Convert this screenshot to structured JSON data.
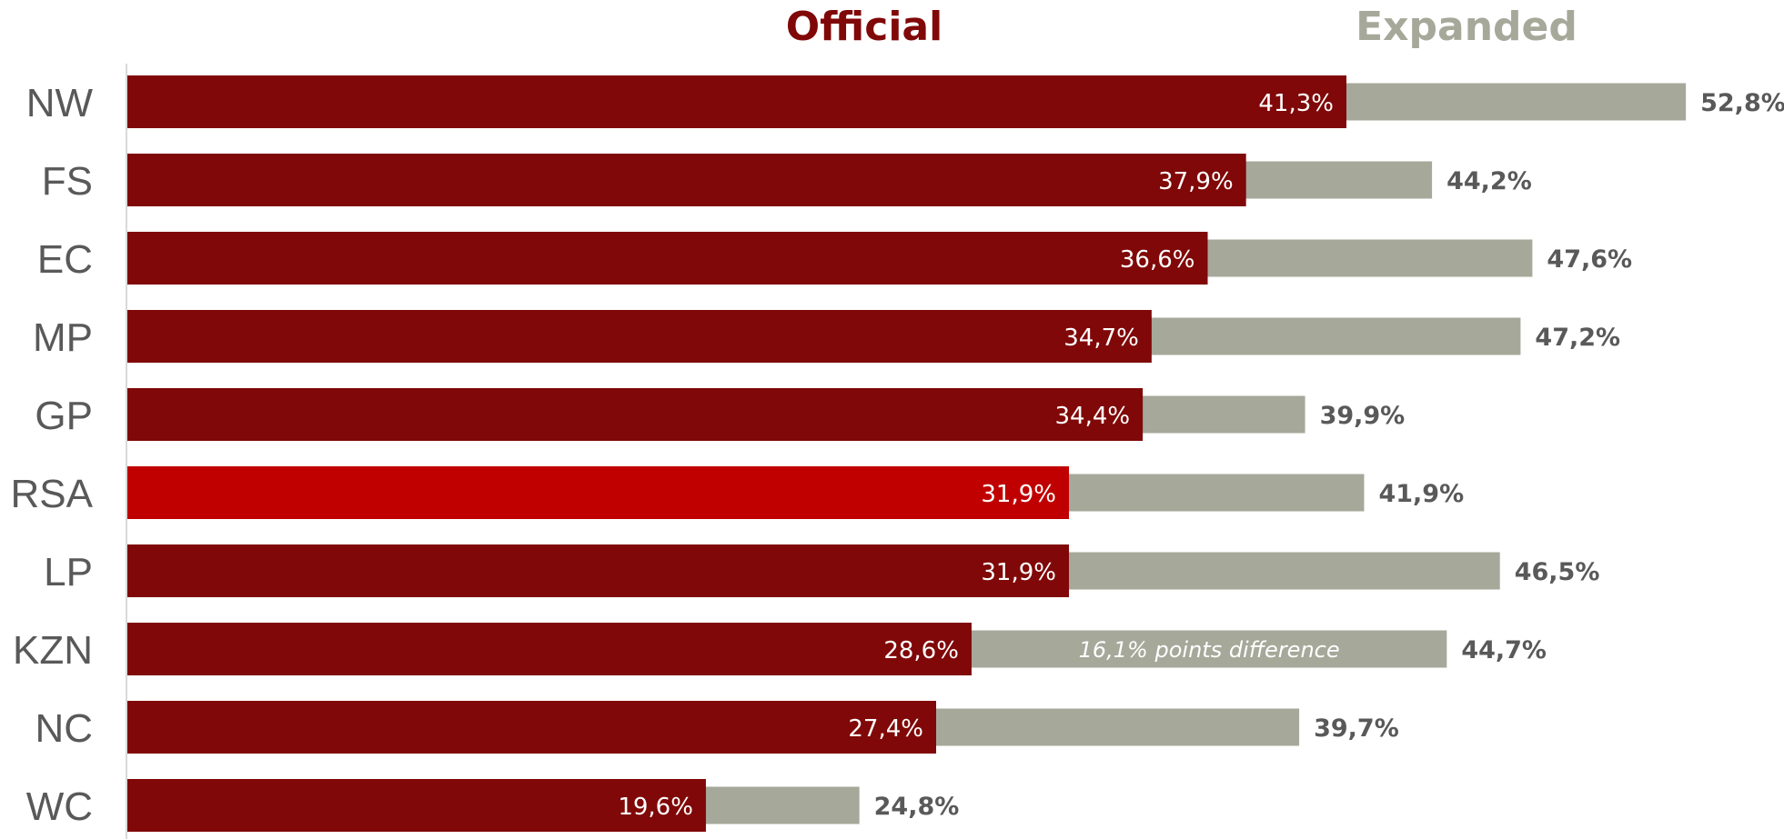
{
  "chart_data": {
    "type": "bar",
    "orientation": "horizontal",
    "categories": [
      "NW",
      "FS",
      "EC",
      "MP",
      "GP",
      "RSA",
      "LP",
      "KZN",
      "NC",
      "WC"
    ],
    "series": [
      {
        "name": "Official",
        "values": [
          41.3,
          37.9,
          36.6,
          34.7,
          34.4,
          31.9,
          31.9,
          28.6,
          27.4,
          19.6
        ],
        "labels": [
          "41,3%",
          "37,9%",
          "36,6%",
          "34,7%",
          "34,4%",
          "31,9%",
          "31,9%",
          "28,6%",
          "27,4%",
          "19,6%"
        ],
        "color": "#800808",
        "highlight": {
          "category": "RSA",
          "color": "#C00000"
        }
      },
      {
        "name": "Expanded",
        "values": [
          52.8,
          44.2,
          47.6,
          47.2,
          39.9,
          41.9,
          46.5,
          44.7,
          39.7,
          24.8
        ],
        "labels": [
          "52,8%",
          "44,2%",
          "47,6%",
          "47,2%",
          "39,9%",
          "41,9%",
          "46,5%",
          "44,7%",
          "39,7%",
          "24,8%"
        ],
        "color": "#A6A89A"
      }
    ],
    "annotations": [
      {
        "category": "KZN",
        "text": "16,1% points difference"
      }
    ],
    "legend_placement": "top",
    "grid": false,
    "xlim": [
      0,
      60
    ]
  },
  "colors": {
    "official_legend": "#800808",
    "expanded_legend": "#A6A89A",
    "category_text": "#595959",
    "axis_line": "#D9D9D9"
  }
}
